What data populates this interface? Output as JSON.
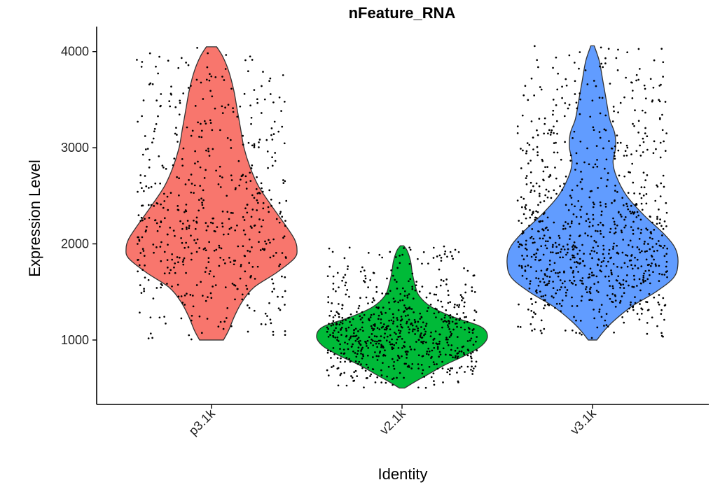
{
  "chart_data": {
    "type": "violin",
    "title": "nFeature_RNA",
    "xlabel": "Identity",
    "ylabel": "Expression Level",
    "categories": [
      "p3.1k",
      "v2.1k",
      "v3.1k"
    ],
    "yticks": [
      1000,
      2000,
      3000,
      4000
    ],
    "ylim": [
      330,
      4260
    ],
    "grid": false,
    "legend": "none",
    "series": [
      {
        "category": "p3.1k",
        "color": "#F8766D",
        "min": 1000,
        "max": 4050,
        "mode": 1900,
        "point_count": 560,
        "density": [
          {
            "y": 1000,
            "width": 0.14
          },
          {
            "y": 1100,
            "width": 0.2
          },
          {
            "y": 1250,
            "width": 0.27
          },
          {
            "y": 1400,
            "width": 0.36
          },
          {
            "y": 1550,
            "width": 0.5
          },
          {
            "y": 1700,
            "width": 0.76
          },
          {
            "y": 1850,
            "width": 0.97
          },
          {
            "y": 1950,
            "width": 1.0
          },
          {
            "y": 2050,
            "width": 0.97
          },
          {
            "y": 2200,
            "width": 0.86
          },
          {
            "y": 2400,
            "width": 0.7
          },
          {
            "y": 2600,
            "width": 0.55
          },
          {
            "y": 2800,
            "width": 0.45
          },
          {
            "y": 3000,
            "width": 0.38
          },
          {
            "y": 3200,
            "width": 0.34
          },
          {
            "y": 3400,
            "width": 0.3
          },
          {
            "y": 3600,
            "width": 0.26
          },
          {
            "y": 3800,
            "width": 0.2
          },
          {
            "y": 3950,
            "width": 0.13
          },
          {
            "y": 4050,
            "width": 0.06
          }
        ]
      },
      {
        "category": "v2.1k",
        "color": "#00BA38",
        "min": 500,
        "max": 1980,
        "mode": 1080,
        "point_count": 700,
        "density": [
          {
            "y": 500,
            "width": 0.03
          },
          {
            "y": 560,
            "width": 0.14
          },
          {
            "y": 640,
            "width": 0.3
          },
          {
            "y": 740,
            "width": 0.5
          },
          {
            "y": 840,
            "width": 0.74
          },
          {
            "y": 940,
            "width": 0.93
          },
          {
            "y": 1040,
            "width": 1.0
          },
          {
            "y": 1140,
            "width": 0.92
          },
          {
            "y": 1240,
            "width": 0.6
          },
          {
            "y": 1340,
            "width": 0.35
          },
          {
            "y": 1460,
            "width": 0.2
          },
          {
            "y": 1580,
            "width": 0.15
          },
          {
            "y": 1700,
            "width": 0.12
          },
          {
            "y": 1820,
            "width": 0.1
          },
          {
            "y": 1930,
            "width": 0.06
          },
          {
            "y": 1980,
            "width": 0.02
          }
        ]
      },
      {
        "category": "v3.1k",
        "color": "#619CFF",
        "min": 1000,
        "max": 4060,
        "mode": 1800,
        "point_count": 900,
        "density": [
          {
            "y": 1000,
            "width": 0.05
          },
          {
            "y": 1100,
            "width": 0.14
          },
          {
            "y": 1200,
            "width": 0.25
          },
          {
            "y": 1350,
            "width": 0.46
          },
          {
            "y": 1500,
            "width": 0.74
          },
          {
            "y": 1650,
            "width": 0.95
          },
          {
            "y": 1800,
            "width": 1.0
          },
          {
            "y": 1950,
            "width": 0.97
          },
          {
            "y": 2100,
            "width": 0.84
          },
          {
            "y": 2300,
            "width": 0.6
          },
          {
            "y": 2500,
            "width": 0.4
          },
          {
            "y": 2700,
            "width": 0.28
          },
          {
            "y": 2850,
            "width": 0.24
          },
          {
            "y": 3000,
            "width": 0.27
          },
          {
            "y": 3150,
            "width": 0.26
          },
          {
            "y": 3300,
            "width": 0.2
          },
          {
            "y": 3500,
            "width": 0.16
          },
          {
            "y": 3700,
            "width": 0.12
          },
          {
            "y": 3900,
            "width": 0.08
          },
          {
            "y": 4060,
            "width": 0.02
          }
        ]
      }
    ]
  }
}
